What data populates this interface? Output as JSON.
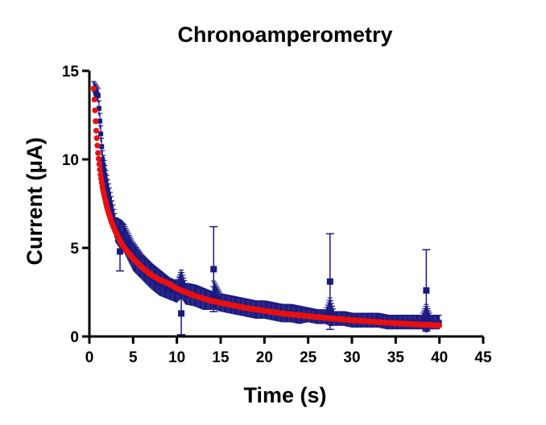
{
  "chart_data": {
    "type": "scatter",
    "title": "Chronoamperometry",
    "xlabel": "Time (s)",
    "ylabel": "Current (μA)",
    "xlim": [
      0,
      45
    ],
    "ylim": [
      0,
      15
    ],
    "xticks": [
      0,
      5,
      10,
      15,
      20,
      25,
      30,
      35,
      40,
      45
    ],
    "yticks": [
      0,
      5,
      10,
      15
    ],
    "grid": false,
    "legend": "none",
    "colors": {
      "measured": "#1a1a80",
      "fit": "#e81010"
    },
    "series": [
      {
        "kind": "measured_with_error_bars",
        "x": [
          0.5,
          1,
          1.5,
          2,
          3,
          3.5,
          4,
          5,
          6,
          7,
          8,
          9,
          10,
          10.5,
          11,
          12,
          13,
          14,
          14.2,
          15,
          16,
          17,
          18,
          19,
          20,
          21,
          22,
          23,
          24,
          25,
          26,
          27,
          27.5,
          28,
          29,
          30,
          31,
          32,
          33,
          34,
          35,
          36,
          37,
          38,
          38.5,
          39,
          40
        ],
        "y": [
          14.0,
          13.6,
          10.0,
          8.5,
          6.0,
          4.8,
          5.5,
          4.5,
          3.9,
          3.4,
          3.0,
          2.7,
          2.5,
          1.3,
          2.4,
          2.3,
          2.1,
          2.0,
          3.8,
          1.9,
          1.8,
          1.7,
          1.6,
          1.5,
          1.5,
          1.4,
          1.3,
          1.3,
          1.2,
          1.2,
          1.1,
          1.1,
          3.1,
          1.0,
          1.0,
          0.9,
          0.9,
          0.9,
          0.9,
          0.8,
          0.8,
          0.8,
          0.8,
          0.8,
          2.6,
          0.8,
          0.8
        ],
        "err": [
          0.4,
          0.4,
          0.5,
          0.6,
          0.7,
          1.1,
          0.8,
          0.8,
          0.7,
          0.7,
          0.7,
          0.6,
          0.6,
          1.2,
          0.6,
          0.6,
          0.6,
          0.5,
          2.4,
          0.5,
          0.5,
          0.5,
          0.5,
          0.5,
          0.5,
          0.5,
          0.5,
          0.5,
          0.5,
          0.4,
          0.4,
          0.4,
          2.7,
          0.4,
          0.4,
          0.4,
          0.4,
          0.4,
          0.4,
          0.4,
          0.4,
          0.4,
          0.4,
          0.4,
          2.3,
          0.4,
          0.4
        ]
      },
      {
        "kind": "fit",
        "x": [
          0.5,
          0.75,
          1,
          1.25,
          1.5,
          2,
          2.5,
          3,
          3.5,
          4,
          5,
          6,
          7,
          8,
          9,
          10,
          12,
          14,
          16,
          18,
          20,
          22,
          24,
          26,
          28,
          30,
          32,
          34,
          36,
          38,
          40
        ],
        "y": [
          14.0,
          11.8,
          10.3,
          9.2,
          8.4,
          7.3,
          6.5,
          5.9,
          5.4,
          5.0,
          4.4,
          3.9,
          3.5,
          3.2,
          3.0,
          2.7,
          2.3,
          2.0,
          1.8,
          1.6,
          1.45,
          1.3,
          1.2,
          1.1,
          1.0,
          0.92,
          0.85,
          0.78,
          0.72,
          0.67,
          0.62
        ]
      }
    ]
  }
}
